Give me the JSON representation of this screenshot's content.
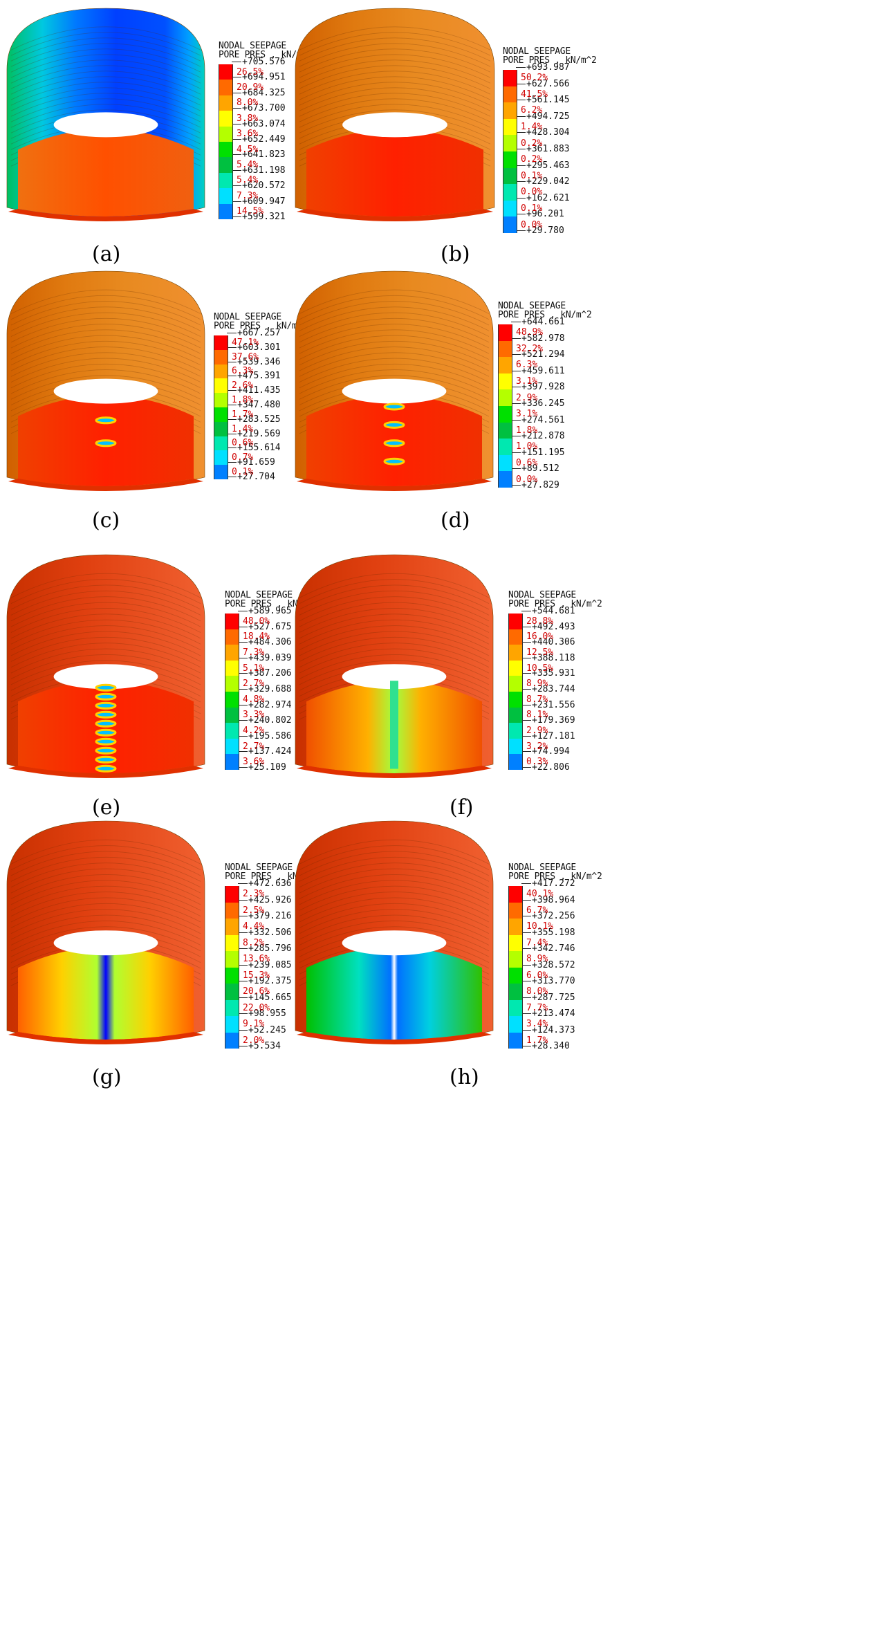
{
  "legend_title_1": "NODAL SEEPAGE",
  "legend_title_2": "PORE PRES , kN/m^2",
  "panels": [
    {
      "caption": "(a)",
      "letter": "a",
      "values": [
        "+705.576",
        "+694.951",
        "+684.325",
        "+673.700",
        "+663.074",
        "+652.449",
        "+641.823",
        "+631.198",
        "+620.572",
        "+609.947",
        "+599.321"
      ],
      "percents": [
        "26.5%",
        "20.9%",
        "8.0%",
        "3.8%",
        "3.6%",
        "4.5%",
        "5.4%",
        "5.4%",
        "7.3%",
        "14.5%"
      ]
    },
    {
      "caption": "(b)",
      "letter": "b",
      "values": [
        "+693.987",
        "+627.566",
        "+561.145",
        "+494.725",
        "+428.304",
        "+361.883",
        "+295.463",
        "+229.042",
        "+162.621",
        "+96.201",
        "+29.780"
      ],
      "percents": [
        "50.2%",
        "41.5%",
        "6.2%",
        "1.4%",
        "0.2%",
        "0.2%",
        "0.1%",
        "0.0%",
        "0.1%",
        "0.0%"
      ]
    },
    {
      "caption": "(c)",
      "letter": "c",
      "values": [
        "+667.257",
        "+603.301",
        "+539.346",
        "+475.391",
        "+411.435",
        "+347.480",
        "+283.525",
        "+219.569",
        "+155.614",
        "+91.659",
        "+27.704"
      ],
      "percents": [
        "47.1%",
        "37.6%",
        "6.3%",
        "2.6%",
        "1.8%",
        "1.7%",
        "1.4%",
        "0.6%",
        "0.7%",
        "0.1%"
      ]
    },
    {
      "caption": "(d)",
      "letter": "d",
      "values": [
        "+644.661",
        "+582.978",
        "+521.294",
        "+459.611",
        "+397.928",
        "+336.245",
        "+274.561",
        "+212.878",
        "+151.195",
        "+89.512",
        "+27.829"
      ],
      "percents": [
        "48.9%",
        "32.2%",
        "6.3%",
        "3.1%",
        "2.9%",
        "3.1%",
        "1.8%",
        "1.0%",
        "0.6%",
        "0.0%"
      ]
    },
    {
      "caption": "(e)",
      "letter": "e",
      "values": [
        "+589.965",
        "+527.675",
        "+484.306",
        "+439.039",
        "+387.206",
        "+329.688",
        "+282.974",
        "+240.802",
        "+195.586",
        "+137.424",
        "+25.109"
      ],
      "percents": [
        "48.0%",
        "18.4%",
        "7.3%",
        "5.1%",
        "2.7%",
        "4.8%",
        "3.3%",
        "4.2%",
        "2.7%",
        "3.6%"
      ]
    },
    {
      "caption": "(f)",
      "letter": "f",
      "values": [
        "+544.681",
        "+492.493",
        "+440.306",
        "+388.118",
        "+335.931",
        "+283.744",
        "+231.556",
        "+179.369",
        "+127.181",
        "+74.994",
        "+22.806"
      ],
      "percents": [
        "28.8%",
        "16.0%",
        "12.5%",
        "10.5%",
        "8.9%",
        "8.7%",
        "8.1%",
        "2.9%",
        "3.2%",
        "0.3%"
      ]
    },
    {
      "caption": "(g)",
      "letter": "g",
      "values": [
        "+472.636",
        "+425.926",
        "+379.216",
        "+332.506",
        "+285.796",
        "+239.085",
        "+192.375",
        "+145.665",
        "+98.955",
        "+52.245",
        "+5.534"
      ],
      "percents": [
        "2.3%",
        "2.5%",
        "4.4%",
        "8.2%",
        "13.6%",
        "15.3%",
        "20.6%",
        "22.0%",
        "9.1%",
        "2.0%"
      ]
    },
    {
      "caption": "(h)",
      "letter": "h",
      "values": [
        "+417.272",
        "+398.964",
        "+372.256",
        "+355.198",
        "+342.746",
        "+328.572",
        "+313.770",
        "+287.725",
        "+213.474",
        "+124.373",
        "+28.340"
      ],
      "percents": [
        "40.1%",
        "6.7%",
        "10.1%",
        "7.4%",
        "8.9%",
        "6.0%",
        "8.0%",
        "7.7%",
        "3.4%",
        "1.7%"
      ]
    }
  ],
  "colors": {
    "scale": [
      "#ff0000",
      "#ff6a00",
      "#ffa500",
      "#ffff00",
      "#b4ff00",
      "#00e000",
      "#00c040",
      "#00e8b0",
      "#00e0ff",
      "#0080ff",
      "#0000ff"
    ],
    "percent_text": "#d00000"
  }
}
